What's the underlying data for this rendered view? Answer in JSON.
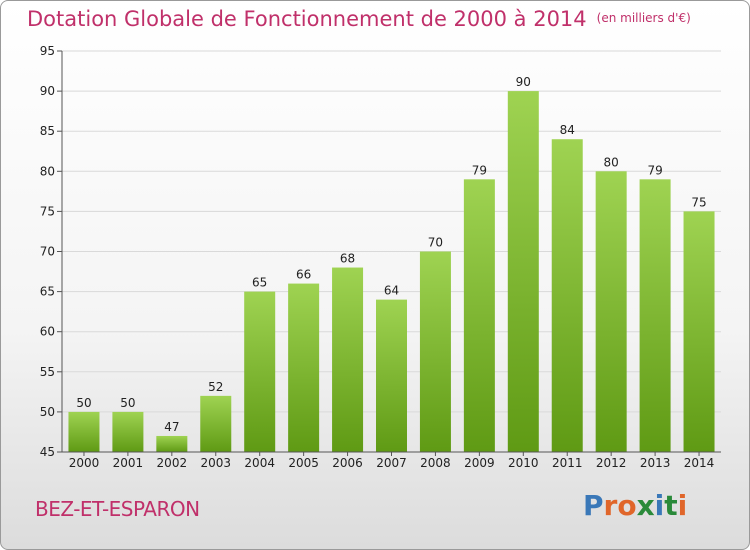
{
  "header": {
    "title": "Dotation Globale de Fonctionnement de 2000 à 2014",
    "unit": "(en milliers d'€)"
  },
  "commune": "BEZ-ET-ESPARON",
  "logo": {
    "text": "Proxiti",
    "colors": [
      "#3a78b8",
      "#e0662a",
      "#e0662a",
      "#2a8a3a",
      "#3a78b8",
      "#2a8a3a",
      "#e0662a"
    ]
  },
  "colors": {
    "title": "#c0306a",
    "bar_top": "#9fd352",
    "bar_bottom": "#5f9a14",
    "grid": "#d9d9d9"
  },
  "chart_data": {
    "type": "bar",
    "title": "Dotation Globale de Fonctionnement de 2000 à 2014",
    "subtitle": "(en milliers d'€)",
    "categories": [
      "2000",
      "2001",
      "2002",
      "2003",
      "2004",
      "2005",
      "2006",
      "2007",
      "2008",
      "2009",
      "2010",
      "2011",
      "2012",
      "2013",
      "2014"
    ],
    "values": [
      50,
      50,
      47,
      52,
      65,
      66,
      68,
      64,
      70,
      79,
      90,
      84,
      80,
      79,
      75
    ],
    "ylim": [
      45,
      95
    ],
    "yticks": [
      45,
      50,
      55,
      60,
      65,
      70,
      75,
      80,
      85,
      90,
      95
    ],
    "grid": true,
    "xlabel": "",
    "ylabel": ""
  }
}
